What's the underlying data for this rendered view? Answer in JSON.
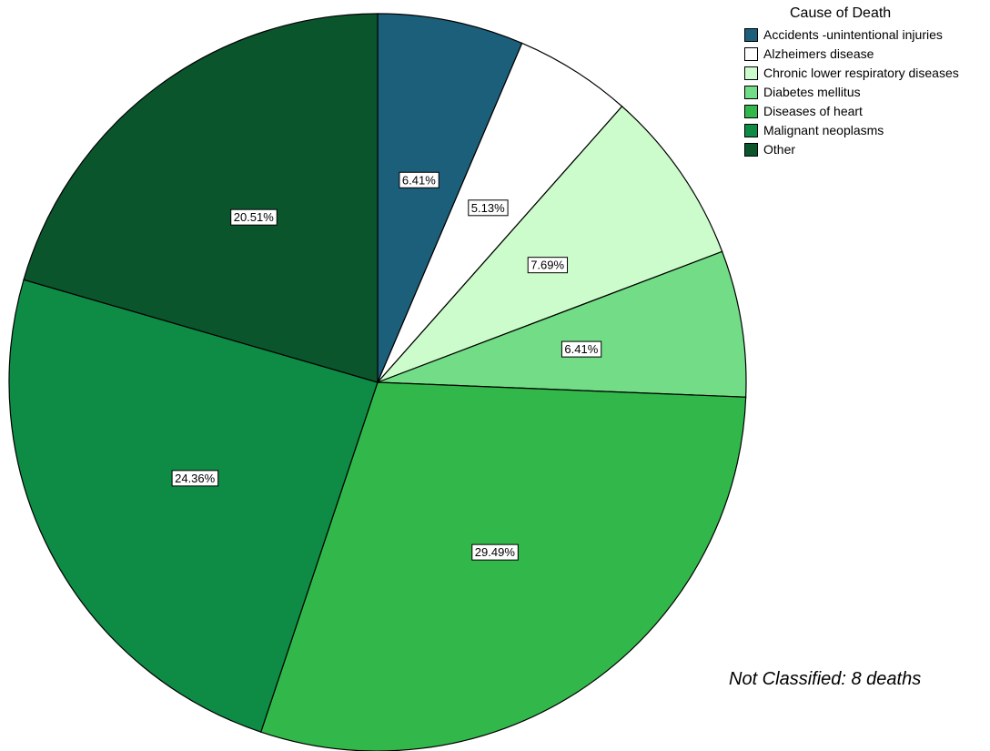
{
  "chart_data": {
    "type": "pie",
    "legend_title": "Cause of Death",
    "legend_position": "top-right",
    "start_angle_deg": 0,
    "direction": "clockwise",
    "slices": [
      {
        "label": "Accidents -unintentional injuries",
        "value": 6.41,
        "display": "6.41%",
        "color": "#1c5f7a"
      },
      {
        "label": "Alzheimers disease",
        "value": 5.13,
        "display": "5.13%",
        "color": "#ffffff"
      },
      {
        "label": "Chronic lower respiratory diseases",
        "value": 7.69,
        "display": "7.69%",
        "color": "#ccfccb"
      },
      {
        "label": "Diabetes mellitus",
        "value": 6.41,
        "display": "6.41%",
        "color": "#72dc86"
      },
      {
        "label": "Diseases of heart",
        "value": 29.49,
        "display": "29.49%",
        "color": "#32b84a"
      },
      {
        "label": "Malignant neoplasms",
        "value": 24.36,
        "display": "24.36%",
        "color": "#0e8b45"
      },
      {
        "label": "Other",
        "value": 20.51,
        "display": "20.51%",
        "color": "#0b552d"
      }
    ],
    "annotation": "Not Classified: 8 deaths"
  }
}
